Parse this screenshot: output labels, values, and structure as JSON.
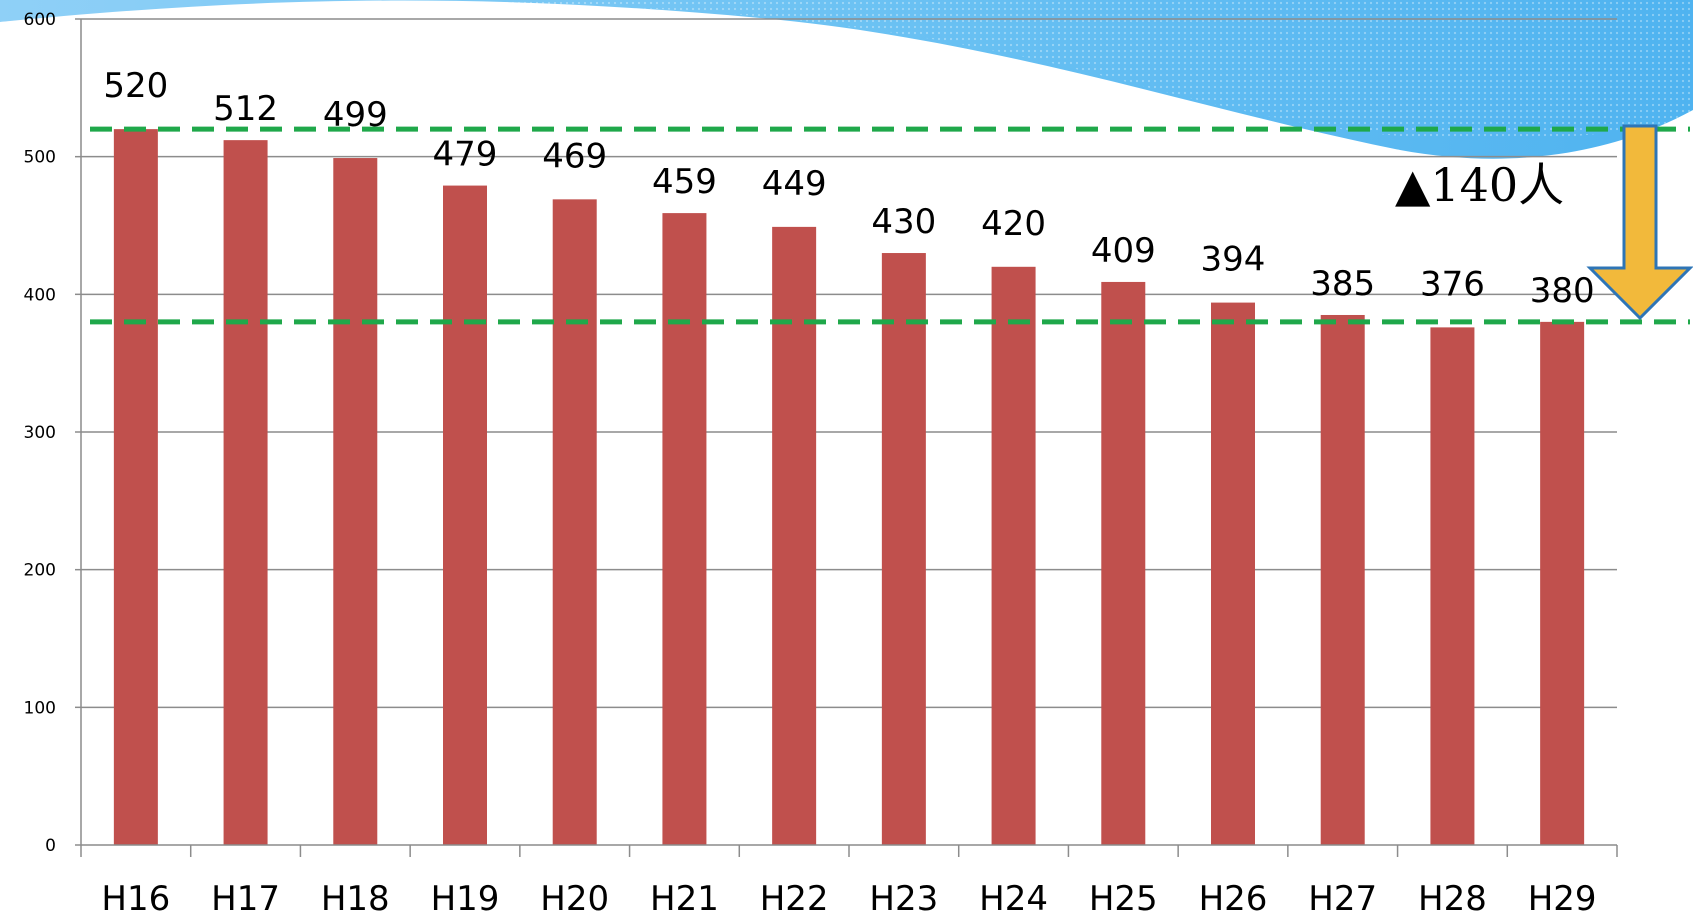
{
  "chart_data": {
    "type": "bar",
    "categories": [
      "H16",
      "H17",
      "H18",
      "H19",
      "H20",
      "H21",
      "H22",
      "H23",
      "H24",
      "H25",
      "H26",
      "H27",
      "H28",
      "H29"
    ],
    "values": [
      520,
      512,
      499,
      479,
      469,
      459,
      449,
      430,
      420,
      409,
      394,
      385,
      376,
      380
    ],
    "title": "",
    "xlabel": "",
    "ylabel": "",
    "ylim": [
      0,
      600
    ],
    "yticks": [
      0,
      100,
      200,
      300,
      400,
      500,
      600
    ],
    "grid": true,
    "legend": "none",
    "reference_lines": [
      520,
      380
    ],
    "annotation": "▲140人"
  },
  "colors": {
    "bar": "#c0504d",
    "gridline": "#8c8c8c",
    "reference_line": "#1fa84a",
    "arrow_fill": "#f2b93b",
    "arrow_stroke": "#2e75b6",
    "wave_light": "#bfe3fb",
    "wave_dark": "#4fb3f0"
  }
}
